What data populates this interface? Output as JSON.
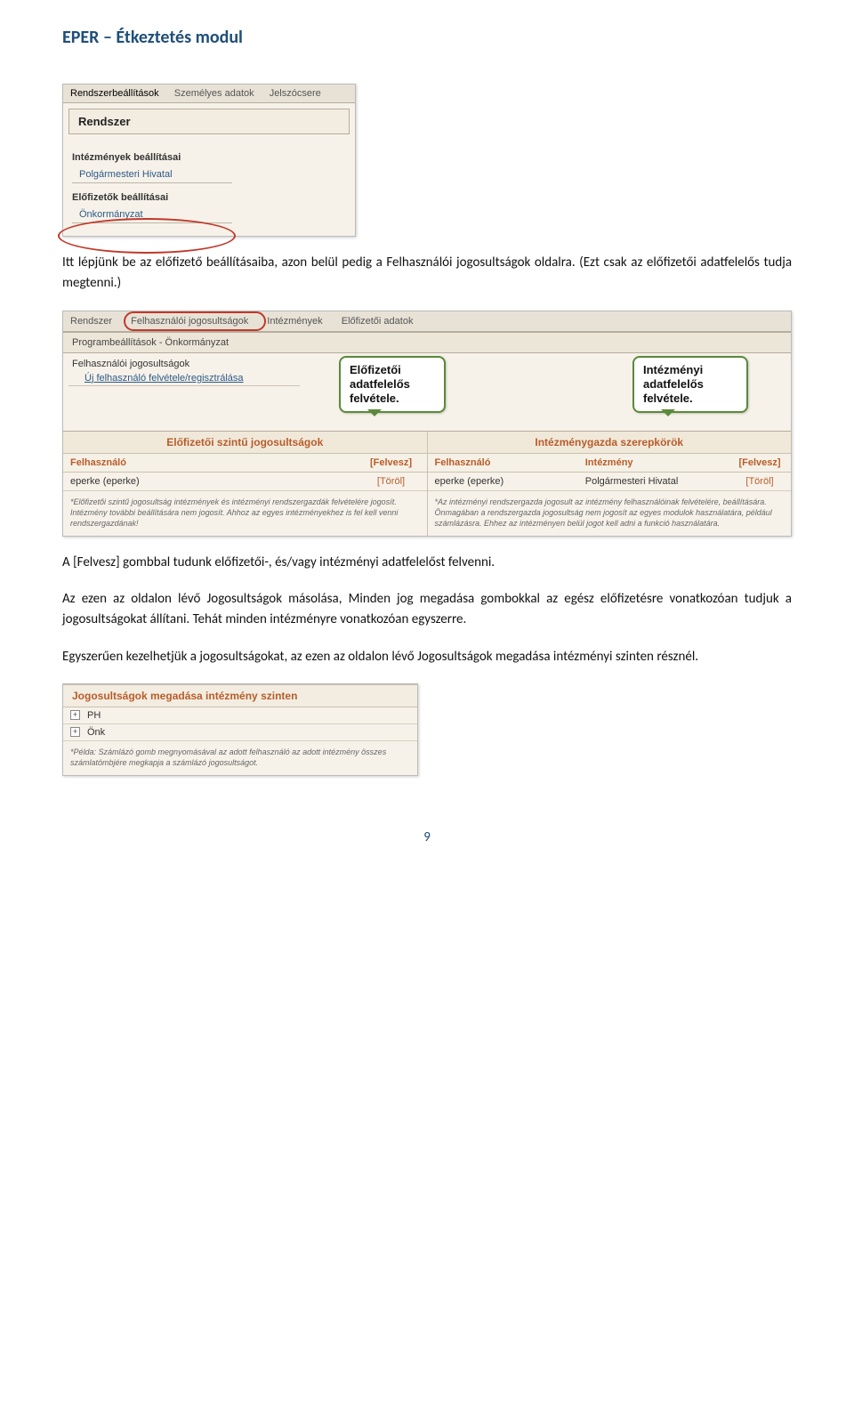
{
  "doc": {
    "title": "EPER – Étkeztetés modul",
    "para1": "Itt lépjünk be az előfizető beállításaiba, azon belül pedig a Felhasználói jogosultságok oldalra. (Ezt csak az előfizetői adatfelelős tudja megtenni.)",
    "para2": "A [Felvesz] gombbal tudunk előfizetői-, és/vagy intézményi adatfelelőst felvenni.",
    "para3": "Az ezen az oldalon lévő Jogosultságok másolása, Minden jog megadása gombokkal az egész előfizetésre vonatkozóan tudjuk a jogosultságokat állítani. Tehát minden intézményre vonatkozóan egyszerre.",
    "para4": "Egyszerűen kezelhetjük a jogosultságokat, az ezen az oldalon lévő Jogosultságok megadása intézményi szinten résznél.",
    "page_number": "9"
  },
  "shot1": {
    "tabs": [
      "Rendszerbeállítások",
      "Személyes adatok",
      "Jelszócsere"
    ],
    "panel": "Rendszer",
    "group1_label": "Intézmények beállításai",
    "group1_item": "Polgármesteri Hivatal",
    "group2_label": "Előfizetők beállításai",
    "group2_item": "Önkormányzat",
    "colors": {
      "panel_bg": "#f7f2e9",
      "border": "#b5ad9d",
      "link": "#2b5a8a",
      "circle": "#c0392b"
    }
  },
  "shot2": {
    "tabs": [
      "Rendszer",
      "Felhasználói jogosultságok",
      "Intézmények",
      "Előfizetői adatok"
    ],
    "subheader": "Programbeállítások - Önkormányzat",
    "row_label": "Felhasználói jogosultságok",
    "link": "Új felhasználó felvétele/regisztrálása",
    "callout_left": "Előfizetői\nadatfelelős\nfelvétele.",
    "callout_right": "Intézményi\nadatfelelős\nfelvétele.",
    "left_table": {
      "title": "Előfizetői szintű jogosultságok",
      "head_user": "Felhasználó",
      "head_action": "[Felvesz]",
      "row_user": "eperke (eperke)",
      "row_action": "[Töröl]",
      "note": "*Előfizetői szintű jogosultság intézmények és intézményi rendszergazdák felvételére jogosít. Intézmény további beállítására nem jogosít. Ahhoz az egyes intézményekhez is fel kell venni rendszergazdának!"
    },
    "right_table": {
      "title": "Intézménygazda szerepkörök",
      "head_user": "Felhasználó",
      "head_inst": "Intézmény",
      "head_action": "[Felvesz]",
      "row_user": "eperke (eperke)",
      "row_inst": "Polgármesteri Hivatal",
      "row_action": "[Töröl]",
      "note": "*Az intézményi rendszergazda jogosult az intézmény felhasználóinak felvételére, beállítására. Önmagában a rendszergazda jogosultság nem jogosít az egyes modulok használatára, például számlázásra. Ehhez az intézményen belül jogot kell adni a funkció használatára."
    },
    "colors": {
      "accent": "#b85c2b",
      "callout_border": "#5a8a3a"
    }
  },
  "shot3": {
    "title": "Jogosultságok megadása intézmény szinten",
    "rows": [
      "PH",
      "Önk"
    ],
    "note": "*Példa: Számlázó gomb megnyomásával az adott felhasználó az adott intézmény összes számlatömbjére megkapja a számlázó jogosultságot."
  }
}
